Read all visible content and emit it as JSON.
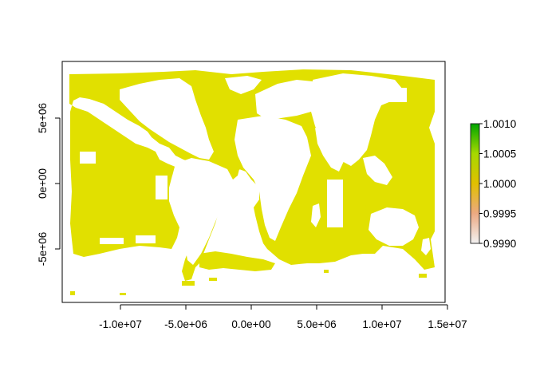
{
  "chart_data": {
    "type": "heatmap",
    "title": "",
    "xlabel": "",
    "ylabel": "",
    "xlim": [
      -14500000,
      15000000
    ],
    "ylim": [
      -9000000,
      9500000
    ],
    "x_ticks": [
      {
        "value": -10000000,
        "label": "-1.0e+07"
      },
      {
        "value": -5000000,
        "label": "-5.0e+06"
      },
      {
        "value": 0,
        "label": "0.0e+00"
      },
      {
        "value": 5000000,
        "label": "5.0e+06"
      },
      {
        "value": 10000000,
        "label": "1.0e+07"
      },
      {
        "value": 15000000,
        "label": "1.5e+07"
      }
    ],
    "y_ticks": [
      {
        "value": -5000000,
        "label": "-5e+06"
      },
      {
        "value": 0,
        "label": "0e+00"
      },
      {
        "value": 5000000,
        "label": "5e+06"
      }
    ],
    "raster_value": 1.0,
    "raster_color": "#e1e000",
    "legend": {
      "placement": "right",
      "range": [
        0.999,
        1.001
      ],
      "ticks": [
        {
          "value": 1.001,
          "label": "1.0010"
        },
        {
          "value": 1.0005,
          "label": "1.0005"
        },
        {
          "value": 1.0,
          "label": "1.0000"
        },
        {
          "value": 0.9995,
          "label": "0.9995"
        },
        {
          "value": 0.999,
          "label": "0.9990"
        }
      ],
      "colors_low_to_high": [
        "#f2f2f2",
        "#eba982",
        "#e1c000",
        "#a6d800",
        "#00a600"
      ]
    }
  }
}
